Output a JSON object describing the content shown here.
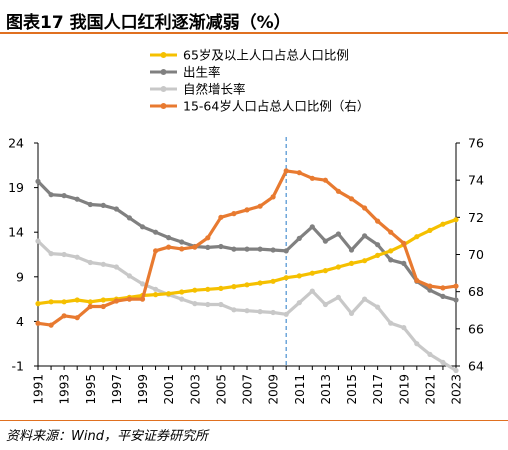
{
  "header": {
    "title": "图表17    我国人口红利逐渐减弱（%）"
  },
  "footer": {
    "source": "资料来源：Wind，平安证券研究所"
  },
  "chart_data": {
    "type": "line",
    "title": "我国人口红利逐渐减弱（%）",
    "x": [
      1991,
      1992,
      1993,
      1994,
      1995,
      1996,
      1997,
      1998,
      1999,
      2000,
      2001,
      2002,
      2003,
      2004,
      2005,
      2006,
      2007,
      2008,
      2009,
      2010,
      2011,
      2012,
      2013,
      2014,
      2015,
      2016,
      2017,
      2018,
      2019,
      2020,
      2021,
      2022,
      2023
    ],
    "x_tick_labels": [
      "1991",
      "1993",
      "1995",
      "1997",
      "1999",
      "2001",
      "2003",
      "2005",
      "2007",
      "2009",
      "2011",
      "2013",
      "2015",
      "2017",
      "2019",
      "2021",
      "2023"
    ],
    "y_left": {
      "range": [
        -1,
        24
      ],
      "ticks": [
        "-1",
        "4",
        "9",
        "14",
        "19",
        "24"
      ]
    },
    "y_right": {
      "range": [
        64,
        76
      ],
      "ticks": [
        "64",
        "66",
        "68",
        "70",
        "72",
        "74",
        "76"
      ]
    },
    "reference_line_x": 2010,
    "legend_position": "top-center",
    "grid": false,
    "series": [
      {
        "name": "65岁及以上人口占总人口比例",
        "axis": "left",
        "color": "#f5c000",
        "marker": true,
        "values": [
          6.0,
          6.2,
          6.2,
          6.4,
          6.2,
          6.4,
          6.5,
          6.7,
          6.9,
          7.0,
          7.1,
          7.3,
          7.5,
          7.6,
          7.7,
          7.9,
          8.1,
          8.3,
          8.5,
          8.9,
          9.1,
          9.4,
          9.7,
          10.1,
          10.5,
          10.8,
          11.4,
          11.9,
          12.6,
          13.5,
          14.2,
          14.9,
          15.4
        ]
      },
      {
        "name": "出生率",
        "axis": "left",
        "color": "#808080",
        "marker": true,
        "values": [
          19.7,
          18.2,
          18.1,
          17.7,
          17.1,
          17.0,
          16.6,
          15.6,
          14.6,
          14.0,
          13.4,
          12.9,
          12.4,
          12.3,
          12.4,
          12.1,
          12.1,
          12.1,
          12.0,
          11.9,
          13.3,
          14.6,
          13.0,
          13.8,
          12.0,
          13.6,
          12.6,
          10.9,
          10.5,
          8.5,
          7.5,
          6.8,
          6.4
        ]
      },
      {
        "name": "自然增长率",
        "axis": "left",
        "color": "#c8c8c8",
        "marker": true,
        "values": [
          13.0,
          11.6,
          11.5,
          11.2,
          10.6,
          10.4,
          10.1,
          9.1,
          8.2,
          7.6,
          7.0,
          6.5,
          6.0,
          5.9,
          5.9,
          5.3,
          5.2,
          5.1,
          5.0,
          4.8,
          6.1,
          7.4,
          5.9,
          6.7,
          4.9,
          6.5,
          5.6,
          3.8,
          3.3,
          1.5,
          0.3,
          -0.6,
          -1.5
        ]
      },
      {
        "name": "15-64岁人口占总人口比例（右）",
        "axis": "right",
        "color": "#e87a30",
        "marker": true,
        "values": [
          66.3,
          66.2,
          66.7,
          66.6,
          67.2,
          67.2,
          67.5,
          67.6,
          67.6,
          70.2,
          70.4,
          70.3,
          70.4,
          70.9,
          72.0,
          72.2,
          72.4,
          72.6,
          73.1,
          74.5,
          74.4,
          74.1,
          74.0,
          73.4,
          73.0,
          72.5,
          71.8,
          71.2,
          70.6,
          68.6,
          68.3,
          68.2,
          68.3
        ]
      }
    ]
  }
}
